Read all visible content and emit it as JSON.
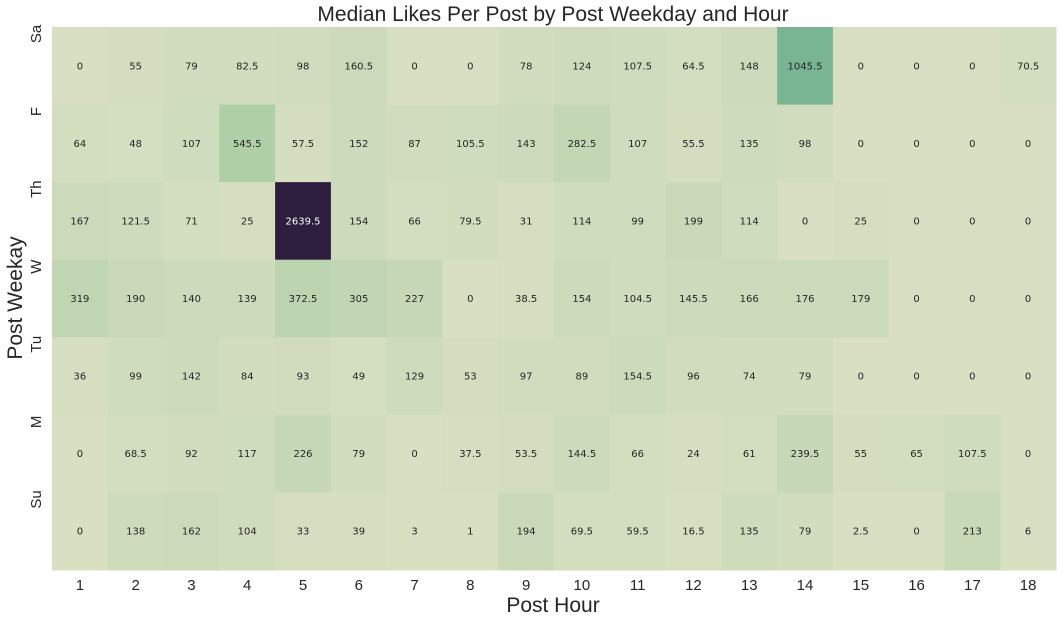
{
  "chart_data": {
    "type": "heatmap",
    "title": "Median Likes Per Post by Post Weekday and Hour",
    "xlabel": "Post Hour",
    "ylabel": "Post Weekay",
    "x": [
      "1",
      "2",
      "3",
      "4",
      "5",
      "6",
      "7",
      "8",
      "9",
      "10",
      "11",
      "12",
      "13",
      "14",
      "15",
      "16",
      "17",
      "18"
    ],
    "y": [
      "Sa",
      "F",
      "Th",
      "W",
      "Tu",
      "M",
      "Su"
    ],
    "values": [
      [
        0,
        55,
        79,
        82.5,
        98,
        160.5,
        0,
        0,
        78,
        124,
        107.5,
        64.5,
        148,
        1045.5,
        0,
        0,
        0,
        70.5
      ],
      [
        64,
        48,
        107,
        545.5,
        57.5,
        152,
        87,
        105.5,
        143,
        282.5,
        107,
        55.5,
        135,
        98,
        0,
        0,
        0,
        0
      ],
      [
        167,
        121.5,
        71,
        25,
        2639.5,
        154,
        66,
        79.5,
        31,
        114,
        99,
        199,
        114,
        0,
        25,
        0,
        0,
        0
      ],
      [
        319,
        190,
        140,
        139,
        372.5,
        305,
        227,
        0,
        38.5,
        154,
        104.5,
        145.5,
        166,
        176,
        179,
        0,
        0,
        0
      ],
      [
        36,
        99,
        142,
        84,
        93,
        49,
        129,
        53,
        97,
        89,
        154.5,
        96,
        74,
        79,
        0,
        0,
        0,
        0
      ],
      [
        0,
        68.5,
        92,
        117,
        226,
        79,
        0,
        37.5,
        53.5,
        144.5,
        66,
        24,
        61,
        239.5,
        55,
        65,
        107.5,
        0
      ],
      [
        0,
        138,
        162,
        104,
        33,
        39,
        3,
        1,
        194,
        69.5,
        59.5,
        16.5,
        135,
        79,
        2.5,
        0,
        213,
        6
      ]
    ],
    "labels": [
      [
        "0",
        "55",
        "79",
        "82.5",
        "98",
        "160.5",
        "0",
        "0",
        "78",
        "124",
        "107.5",
        "64.5",
        "148",
        "1045.5",
        "0",
        "0",
        "0",
        "70.5"
      ],
      [
        "64",
        "48",
        "107",
        "545.5",
        "57.5",
        "152",
        "87",
        "105.5",
        "143",
        "282.5",
        "107",
        "55.5",
        "135",
        "98",
        "0",
        "0",
        "0",
        "0"
      ],
      [
        "167",
        "121.5",
        "71",
        "25",
        "2639.5",
        "154",
        "66",
        "79.5",
        "31",
        "114",
        "99",
        "199",
        "114",
        "0",
        "25",
        "0",
        "0",
        "0"
      ],
      [
        "319",
        "190",
        "140",
        "139",
        "372.5",
        "305",
        "227",
        "0",
        "38.5",
        "154",
        "104.5",
        "145.5",
        "166",
        "176",
        "179",
        "0",
        "0",
        "0"
      ],
      [
        "36",
        "99",
        "142",
        "84",
        "93",
        "49",
        "129",
        "53",
        "97",
        "89",
        "154.5",
        "96",
        "74",
        "79",
        "0",
        "0",
        "0",
        "0"
      ],
      [
        "0",
        "68.5",
        "92",
        "117",
        "226",
        "79",
        "0",
        "37.5",
        "53.5",
        "144.5",
        "66",
        "24",
        "61",
        "239.5",
        "55",
        "65",
        "107.5",
        "0"
      ],
      [
        "0",
        "138",
        "162",
        "104",
        "33",
        "39",
        "3",
        "1",
        "194",
        "69.5",
        "59.5",
        "16.5",
        "135",
        "79",
        "2.5",
        "0",
        "213",
        "6"
      ]
    ],
    "colors": {
      "low": "#d8dfc3",
      "mid": "#9cc89b",
      "high_mid": "#66a98f",
      "max": "#2d1e3e"
    },
    "grid": false,
    "legend": "none",
    "colorbar": false
  }
}
